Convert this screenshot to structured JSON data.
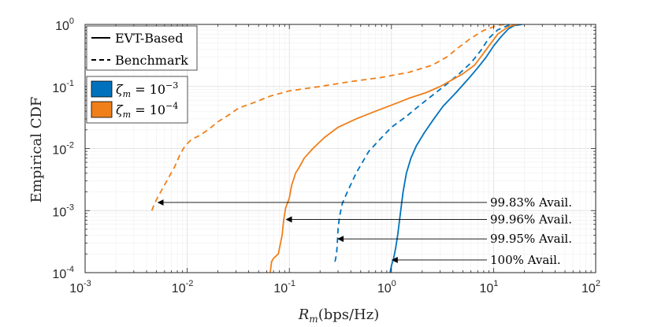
{
  "chart_data": {
    "type": "line",
    "title": "",
    "xlabel": "R_m(bps/Hz)",
    "xlabel_main": "R",
    "xlabel_sub": "m",
    "xlabel_unit": "(bps/Hz)",
    "ylabel": "Empirical CDF",
    "xscale": "log",
    "yscale": "log",
    "xlim": [
      0.001,
      100
    ],
    "ylim": [
      0.0001,
      1
    ],
    "grid": true,
    "x_ticks": [
      {
        "base": "10",
        "exp": "-3",
        "value": 0.001
      },
      {
        "base": "10",
        "exp": "-2",
        "value": 0.01
      },
      {
        "base": "10",
        "exp": "-1",
        "value": 0.1
      },
      {
        "base": "10",
        "exp": "0",
        "value": 1
      },
      {
        "base": "10",
        "exp": "1",
        "value": 10
      },
      {
        "base": "10",
        "exp": "2",
        "value": 100
      }
    ],
    "y_ticks": [
      {
        "base": "10",
        "exp": "-4",
        "value": 0.0001
      },
      {
        "base": "10",
        "exp": "-3",
        "value": 0.001
      },
      {
        "base": "10",
        "exp": "-2",
        "value": 0.01
      },
      {
        "base": "10",
        "exp": "-1",
        "value": 0.1
      },
      {
        "base": "10",
        "exp": "0",
        "value": 1
      }
    ],
    "colors": {
      "blue": "#0072bd",
      "orange": "#f07f1a",
      "arrow": "#000000",
      "grid": "#e3e3e3"
    },
    "legend_style": [
      {
        "label": "EVT-Based",
        "style": "solid"
      },
      {
        "label": "Benchmark",
        "style": "dashed"
      }
    ],
    "legend_color": [
      {
        "label": "ζ_m = 10^-3",
        "sym": "ζ",
        "sub": "m",
        "eq": " = 10",
        "exp": "−3",
        "color": "#0072bd"
      },
      {
        "label": "ζ_m = 10^-4",
        "sym": "ζ",
        "sub": "m",
        "eq": " = 10",
        "exp": "−4",
        "color": "#f07f1a"
      }
    ],
    "series": [
      {
        "name": "EVT-Based ζ_m=10^-3",
        "color": "#0072bd",
        "style": "solid",
        "points": [
          [
            0.97,
            0.0001
          ],
          [
            1.0,
            0.00013
          ],
          [
            1.05,
            0.00017
          ],
          [
            1.1,
            0.00025
          ],
          [
            1.15,
            0.0004
          ],
          [
            1.2,
            0.0007
          ],
          [
            1.25,
            0.0012
          ],
          [
            1.3,
            0.002
          ],
          [
            1.4,
            0.004
          ],
          [
            1.55,
            0.007
          ],
          [
            1.75,
            0.011
          ],
          [
            2.1,
            0.018
          ],
          [
            2.6,
            0.03
          ],
          [
            3.2,
            0.048
          ],
          [
            4.3,
            0.08
          ],
          [
            5.6,
            0.13
          ],
          [
            7.0,
            0.2
          ],
          [
            8.5,
            0.3
          ],
          [
            10.0,
            0.45
          ],
          [
            12.0,
            0.65
          ],
          [
            14.0,
            0.85
          ],
          [
            16.0,
            0.96
          ],
          [
            19.0,
            1.0
          ]
        ]
      },
      {
        "name": "Benchmark ζ_m=10^-3",
        "color": "#0072bd",
        "style": "dashed",
        "points": [
          [
            0.28,
            0.00015
          ],
          [
            0.29,
            0.0002
          ],
          [
            0.295,
            0.0003
          ],
          [
            0.3,
            0.0005
          ],
          [
            0.31,
            0.0008
          ],
          [
            0.33,
            0.0013
          ],
          [
            0.37,
            0.002
          ],
          [
            0.45,
            0.004
          ],
          [
            0.6,
            0.009
          ],
          [
            0.8,
            0.015
          ],
          [
            1.0,
            0.022
          ],
          [
            1.4,
            0.033
          ],
          [
            1.9,
            0.05
          ],
          [
            2.6,
            0.075
          ],
          [
            3.5,
            0.11
          ],
          [
            4.6,
            0.16
          ],
          [
            6.0,
            0.24
          ],
          [
            7.5,
            0.38
          ],
          [
            9.0,
            0.6
          ],
          [
            11.0,
            0.82
          ],
          [
            14.0,
            0.97
          ],
          [
            18.0,
            1.0
          ]
        ]
      },
      {
        "name": "EVT-Based ζ_m=10^-4",
        "color": "#f07f1a",
        "style": "solid",
        "points": [
          [
            0.065,
            0.0001
          ],
          [
            0.067,
            0.00015
          ],
          [
            0.07,
            0.00017
          ],
          [
            0.078,
            0.0002
          ],
          [
            0.082,
            0.0003
          ],
          [
            0.085,
            0.0004
          ],
          [
            0.088,
            0.0007
          ],
          [
            0.092,
            0.0011
          ],
          [
            0.1,
            0.0016
          ],
          [
            0.105,
            0.0025
          ],
          [
            0.115,
            0.004
          ],
          [
            0.125,
            0.005
          ],
          [
            0.14,
            0.007
          ],
          [
            0.17,
            0.01
          ],
          [
            0.22,
            0.015
          ],
          [
            0.3,
            0.022
          ],
          [
            0.45,
            0.03
          ],
          [
            0.7,
            0.04
          ],
          [
            1.0,
            0.05
          ],
          [
            1.5,
            0.065
          ],
          [
            2.2,
            0.08
          ],
          [
            3.0,
            0.1
          ],
          [
            4.0,
            0.13
          ],
          [
            5.0,
            0.16
          ],
          [
            6.5,
            0.22
          ],
          [
            7.5,
            0.3
          ],
          [
            9.0,
            0.45
          ],
          [
            11.0,
            0.7
          ],
          [
            14.0,
            0.92
          ],
          [
            17.0,
            1.0
          ]
        ]
      },
      {
        "name": "Benchmark ζ_m=10^-4",
        "color": "#f07f1a",
        "style": "dashed",
        "points": [
          [
            0.0045,
            0.001
          ],
          [
            0.0047,
            0.0012
          ],
          [
            0.005,
            0.0015
          ],
          [
            0.0055,
            0.002
          ],
          [
            0.0063,
            0.003
          ],
          [
            0.0075,
            0.005
          ],
          [
            0.0085,
            0.008
          ],
          [
            0.0095,
            0.011
          ],
          [
            0.011,
            0.014
          ],
          [
            0.013,
            0.016
          ],
          [
            0.016,
            0.02
          ],
          [
            0.02,
            0.027
          ],
          [
            0.025,
            0.034
          ],
          [
            0.032,
            0.045
          ],
          [
            0.045,
            0.055
          ],
          [
            0.065,
            0.07
          ],
          [
            0.1,
            0.085
          ],
          [
            0.2,
            0.1
          ],
          [
            0.4,
            0.12
          ],
          [
            0.8,
            0.14
          ],
          [
            1.5,
            0.17
          ],
          [
            2.5,
            0.22
          ],
          [
            3.5,
            0.3
          ],
          [
            4.5,
            0.42
          ],
          [
            6.0,
            0.6
          ],
          [
            8.0,
            0.8
          ],
          [
            11.0,
            0.97
          ],
          [
            13.0,
            1.0
          ]
        ]
      }
    ],
    "annotations": [
      {
        "text": "99.83% Avail.",
        "point": [
          0.0051,
          0.00135
        ],
        "text_at_y": 0.00135
      },
      {
        "text": "99.96% Avail.",
        "point": [
          0.092,
          0.00072
        ],
        "text_at_y": 0.00072
      },
      {
        "text": "99.95% Avail.",
        "point": [
          0.295,
          0.00035
        ],
        "text_at_y": 0.00035
      },
      {
        "text": "100% Avail.",
        "point": [
          1.0,
          0.00016
        ],
        "text_at_y": 0.00016
      }
    ]
  }
}
